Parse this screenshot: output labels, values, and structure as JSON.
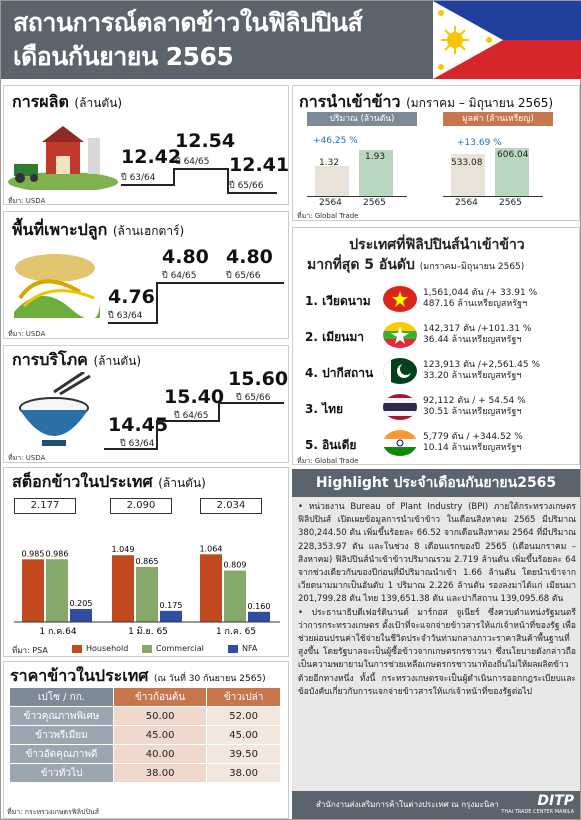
{
  "header": {
    "title_line1": "สถานการณ์ตลาดข้าวในฟิลิปปินส์",
    "title_line2": "เดือนกันยายน 2565"
  },
  "production": {
    "title": "การผลิต",
    "unit": "(ล้านตัน)",
    "values": [
      {
        "value": "12.42",
        "year": "ปี 63/64"
      },
      {
        "value": "12.54",
        "year": "ปี 64/65"
      },
      {
        "value": "12.41",
        "year": "ปี 65/66"
      }
    ],
    "source": "ที่มา: USDA"
  },
  "imports": {
    "title": "การนำเข้าข้าว",
    "period": "(มกราคม – มิถุนายน 2565)",
    "volume_label": "ปริมาณ (ล้านตัน)",
    "value_label": "มูลค่า (ล้านเหรียญ)",
    "volume_change": "+46.25 %",
    "value_change": "+13.69 %",
    "volume": [
      {
        "year": "2564",
        "value": "1.32"
      },
      {
        "year": "2565",
        "value": "1.93"
      }
    ],
    "value": [
      {
        "year": "2564",
        "value": "533.08"
      },
      {
        "year": "2565",
        "value": "606.04"
      }
    ],
    "colors": {
      "bar_2564": "#e8e2d8",
      "bar_2565": "#b9d7bf",
      "label_vol": "#7d8a97",
      "label_val": "#c7764e"
    },
    "source": "ที่มา: Global Trade"
  },
  "area": {
    "title": "พื้นที่เพาะปลูก",
    "unit": "(ล้านเฮกตาร์)",
    "values": [
      {
        "value": "4.76",
        "year": "ปี 63/64"
      },
      {
        "value": "4.80",
        "year": "ปี 64/65"
      },
      {
        "value": "4.80",
        "year": "ปี 65/66"
      }
    ],
    "source": "ที่มา: USDA"
  },
  "top5": {
    "title_line1": "ประเทศที่ฟิลิปปินส์นำเข้าข้าว",
    "title_line2": "มากที่สุด 5 อันดับ",
    "period": "(มกราคม–มิถุนายน 2565)",
    "items": [
      {
        "name": "1. เวียดนาม",
        "line1": "1,561,044 ตัน /+ 33.91 %",
        "line2": "487.16 ล้านเหรียญสหรัฐฯ",
        "flag": "vietnam-flag"
      },
      {
        "name": "2. เมียนมา",
        "line1": "142,317 ตัน /+101.31 %",
        "line2": "36.44 ล้านเหรียญสหรัฐฯ",
        "flag": "myanmar-flag"
      },
      {
        "name": "4. ปากีสถาน",
        "line1": "123,913 ตัน /+2,561.45 %",
        "line2": "33.20 ล้านเหรียญสหรัฐฯ",
        "flag": "pakistan-flag"
      },
      {
        "name": "3. ไทย",
        "line1": "92,112 ตัน / + 54.54 %",
        "line2": "30.51 ล้านเหรียญสหรัฐฯ",
        "flag": "thailand-flag"
      },
      {
        "name": "5. อินเดีย",
        "line1": "5,779 ตัน / +344.52 %",
        "line2": "10.14 ล้านเหรียญสหรัฐฯ",
        "flag": "india-flag"
      }
    ],
    "source": "ที่มา: Global Trade"
  },
  "consumption": {
    "title": "การบริโภค",
    "unit": "(ล้านตัน)",
    "values": [
      {
        "value": "14.45",
        "year": "ปี 63/64"
      },
      {
        "value": "15.40",
        "year": "ปี 64/65"
      },
      {
        "value": "15.60",
        "year": "ปี 65/66"
      }
    ],
    "source": "ที่มา: USDA"
  },
  "stock": {
    "title": "สต็อกข้าวในประเทศ",
    "unit": "(ล้านตัน)",
    "totals": [
      "2.177",
      "2.090",
      "2.034"
    ],
    "chart_data": {
      "type": "bar",
      "categories": [
        "1 ก.ค.64",
        "1 มิ.ย. 65",
        "1 ก.ค. 65"
      ],
      "series": [
        {
          "name": "Household",
          "values": [
            0.985,
            1.049,
            1.064
          ],
          "color": "#c24a1e"
        },
        {
          "name": "Commercial",
          "values": [
            0.986,
            0.865,
            0.809
          ],
          "color": "#86a86a"
        },
        {
          "name": "NFA",
          "values": [
            0.205,
            0.175,
            0.16
          ],
          "color": "#2f4ea0"
        }
      ],
      "labels": [
        [
          "0.985",
          "0.986",
          "0.205"
        ],
        [
          "1.049",
          "0.865",
          "0.175"
        ],
        [
          "1.064",
          "0.809",
          "0.160"
        ]
      ]
    },
    "source": "ที่มา: PSA"
  },
  "price": {
    "title": "ราคาข้าวในประเทศ",
    "date": "(ณ วันที่ 30 กันยายน 2565)",
    "headers": [
      "เปโซ / กก.",
      "ข้าวก้อนต้น",
      "ข้าวเปล่า"
    ],
    "rows": [
      [
        "ข้าวคุณภาพพิเศษ",
        "50.00",
        "52.00"
      ],
      [
        "ข้าวพรีเมียม",
        "45.00",
        "45.00"
      ],
      [
        "ข้าวอัตคุณภาพดี",
        "40.00",
        "39.50"
      ],
      [
        "ข้าวทั่วไป",
        "38.00",
        "38.00"
      ]
    ],
    "colors": {
      "header_left": "#7d8a97",
      "header_mid": "#c7764e",
      "header_right": "#c7764e",
      "row_left": "#9aa6b2",
      "row_mid": "#f0d9cc",
      "row_right": "#f3e6dc"
    },
    "source": "ที่มา: กระทรวงเกษตรฟิลิปปินส์"
  },
  "highlight": {
    "title": "Highlight ประจำเดือนกันยายน2565",
    "para1": "• หน่วยงาน Bureau of Plant Industry (BPI) ภายใต้กระทรวงเกษตรฟิลิปปินส์ เปิดเผยข้อมูลการนำเข้าข้าว ในเดือนสิงหาคม 2565 มีปริมาณ 380,244.50 ตัน เพิ่มขึ้นร้อยละ 66.52 จากเดือนสิงหาคม 2564 ที่มีปริมาณ 228,353.97 ตัน และในช่วง 8 เดือนแรกของปี 2565 (เดือนมกราคม – สิงหาคม) ฟิลิปปินส์นำเข้าข้าวปริมาณรวม 2.719 ล้านตัน เพิ่มขึ้นร้อยละ 64 จากช่วงเดียวกันของปีก่อนที่มีปริมาณนำเข้า 1.66 ล้านตัน โดยนำเข้าจากเวียดนามมากเป็นอันดับ 1 ปริมาณ 2.226 ล้านตัน รองลงมาได้แก่ เมียนมา 201,799.28 ตัน ไทย 139,651.38 ตัน และปากีสถาน 139,095.68 ตัน",
    "para2": "• ประธานาธิบดีเฟอร์ดินานด์ มาร์กอส จูเนียร์ ซึ่งควบตำแหน่งรัฐมนตรีว่าการกระทรวงเกษตร ตั้งเป้าที่จะแจกจ่ายข้าวสารให้แก่เจ้าหน้าที่ของรัฐ เพื่อช่วยผ่อนปรนค่าใช้จ่ายในชีวิตประจำวันท่ามกลางภาวะราคาสินค้าพื้นฐานที่สูงขึ้น โดยรัฐบาลจะเป็นผู้ซื้อข้าวจากเกษตรกรชาวนา ซึ่งนโยบายดังกล่าวถือเป็นความพยายามในการช่วยเหลือเกษตรกรชาวนาท้องถิ่นไม่ให้ผลผลิตข้าวด้วยอีกทางหนึ่ง ทั้งนี้ กระทรวงเกษตรจะเป็นผู้ดำเนินการออกกฎระเบียบและข้อบังคับเกี่ยวกับการแจกจ่ายข้าวสารให้แก่เจ้าหน้าที่ของรัฐต่อไป",
    "footer": "สำนักงานส่งเสริมการค้าในต่างประเทศ ณ กรุงมะนิลา",
    "logo_text": "DITP",
    "logo_sub": "THAI TRADE CENTER MANILA"
  },
  "colors": {
    "header_bg": "#5b636c",
    "flag_blue": "#1f3f9a",
    "flag_red": "#d6262b",
    "flag_yellow": "#f7c600"
  }
}
